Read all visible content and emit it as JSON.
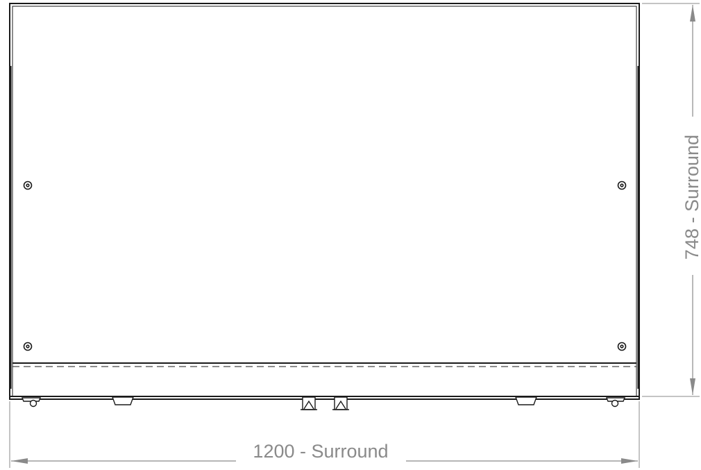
{
  "drawing": {
    "view": "front-elevation",
    "width_dimension": {
      "label": "1200 - Surround",
      "value": 1200
    },
    "height_dimension": {
      "label": "748 - Surround",
      "value": 748
    },
    "colors": {
      "outline": "#1a1a1a",
      "dimension": "#8a8a8a",
      "background": "#ffffff"
    }
  }
}
